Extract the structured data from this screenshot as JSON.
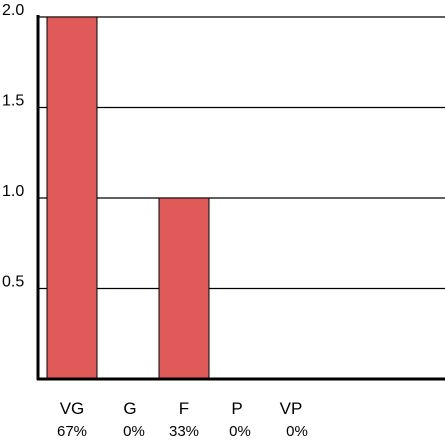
{
  "chart_data": {
    "type": "bar",
    "categories": [
      "VG",
      "G",
      "F",
      "P",
      "VP"
    ],
    "percent_labels": [
      "67%",
      "0%",
      "33%",
      "0%",
      "0%"
    ],
    "values": [
      2.0,
      0,
      1.0,
      0,
      0
    ],
    "ylim": [
      0,
      2.0
    ],
    "yticks": [
      0.5,
      1.0,
      1.5,
      2.0
    ],
    "ytick_labels": [
      "0.5",
      "1.0",
      "1.5",
      "2.0"
    ],
    "grid": true,
    "bar_color": "#e05a5a",
    "bar_edge_color": "#000000",
    "axis_color": "#000000"
  }
}
